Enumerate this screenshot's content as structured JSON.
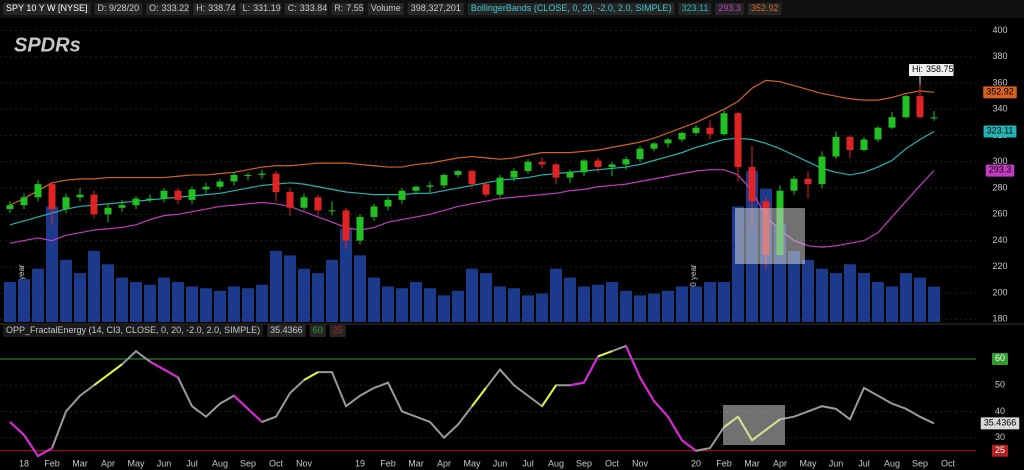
{
  "header": {
    "symbol": "SPY 10 Y W [NYSE]",
    "date": "D: 9/28/20",
    "open": "O:",
    "high": "H:",
    "low": "L:",
    "close": "C:",
    "range_label": "R:",
    "range": 7.55,
    "volume_label": "Volume",
    "volume": "398,327,201",
    "study": "BollingerBands (CLOSE, 0, 20, -2.0, 2.0, SIMPLE)",
    "logo": "SPDRs"
  },
  "chart_data": [
    {
      "type": "candlestick",
      "up_color": "#22c022",
      "down_color": "#e02424",
      "high_label": "Hi:",
      "annotations": [
        "2018 year",
        "2019 year",
        "2020 year"
      ],
      "categories": [
        null,
        "18",
        null,
        "Feb",
        null,
        "Mar",
        null,
        "Apr",
        null,
        "May",
        null,
        "Jun",
        null,
        "Jul",
        null,
        "Aug",
        null,
        "Sep",
        null,
        "Oct",
        null,
        "Nov",
        null,
        null,
        null,
        "19",
        null,
        "Feb",
        null,
        "Mar",
        null,
        "Apr",
        null,
        "May",
        null,
        "Jun",
        null,
        "Jul",
        null,
        "Aug",
        null,
        "Sep",
        null,
        "Oct",
        null,
        "Nov",
        null,
        null,
        null,
        "20",
        null,
        "Feb",
        null,
        "Mar",
        null,
        "Apr",
        null,
        "May",
        null,
        "Jun",
        null,
        "Jul",
        null,
        "Aug",
        null,
        "Sep",
        null,
        "Oct"
      ],
      "open": [
        264,
        267,
        273,
        283,
        264,
        273,
        275,
        260,
        265,
        267,
        272,
        272,
        278,
        271,
        279,
        281,
        285,
        290,
        290,
        291,
        277,
        265,
        273,
        263,
        263,
        240,
        258,
        266,
        271,
        278,
        281,
        282,
        290,
        293,
        283,
        275,
        288,
        293,
        300,
        298,
        288,
        292,
        301,
        296,
        298,
        302,
        310,
        314,
        317,
        322,
        326,
        321,
        337,
        296,
        270,
        229,
        278,
        287,
        283,
        304,
        319,
        309,
        317,
        326,
        334,
        350,
        333.22,
        null
      ],
      "high": [
        270,
        276,
        286,
        285,
        276,
        280,
        278,
        268,
        271,
        274,
        275,
        280,
        280,
        281,
        284,
        287,
        292,
        292,
        294,
        293,
        280,
        276,
        275,
        270,
        265,
        260,
        268,
        273,
        280,
        282,
        285,
        291,
        294,
        294,
        285,
        290,
        295,
        302,
        303,
        299,
        294,
        302,
        303,
        300,
        304,
        312,
        315,
        318,
        323,
        328,
        332,
        339,
        338,
        312,
        273,
        282,
        289,
        293,
        308,
        323,
        320,
        319,
        327,
        338,
        351,
        358.75,
        338.74,
        null
      ],
      "low": [
        261,
        264,
        270,
        252,
        261,
        270,
        257,
        254,
        262,
        264,
        269,
        269,
        268,
        268,
        276,
        279,
        282,
        286,
        287,
        270,
        259,
        263,
        259,
        259,
        234,
        237,
        255,
        263,
        268,
        275,
        276,
        280,
        288,
        280,
        273,
        273,
        285,
        291,
        295,
        283,
        284,
        289,
        292,
        289,
        294,
        300,
        308,
        311,
        315,
        320,
        317,
        320,
        285,
        250,
        218,
        228,
        275,
        272,
        280,
        302,
        303,
        308,
        315,
        325,
        333,
        333,
        331.19,
        null
      ],
      "close": [
        267,
        273,
        283,
        264,
        273,
        275,
        260,
        265,
        267,
        272,
        272,
        278,
        271,
        279,
        281,
        285,
        290,
        290,
        291,
        277,
        265,
        273,
        263,
        263,
        240,
        258,
        266,
        271,
        278,
        281,
        282,
        290,
        293,
        283,
        275,
        288,
        293,
        300,
        298,
        288,
        292,
        301,
        296,
        298,
        302,
        310,
        314,
        317,
        322,
        326,
        321,
        337,
        296,
        270,
        229,
        278,
        287,
        283,
        304,
        319,
        309,
        317,
        326,
        334,
        350,
        334,
        333.84,
        null
      ],
      "volume": {
        "color": "#1c3a8c",
        "ylim": [
          0,
          3400000000
        ],
        "values": [
          450000000,
          480000000,
          600000000,
          1300000000,
          700000000,
          550000000,
          800000000,
          650000000,
          500000000,
          450000000,
          420000000,
          500000000,
          450000000,
          400000000,
          380000000,
          350000000,
          400000000,
          380000000,
          420000000,
          800000000,
          750000000,
          600000000,
          550000000,
          700000000,
          1050000000,
          750000000,
          500000000,
          400000000,
          380000000,
          450000000,
          380000000,
          300000000,
          350000000,
          600000000,
          550000000,
          400000000,
          380000000,
          300000000,
          320000000,
          600000000,
          500000000,
          400000000,
          420000000,
          450000000,
          350000000,
          300000000,
          320000000,
          350000000,
          400000000,
          400000000,
          450000000,
          450000000,
          1300000000,
          1700000000,
          1500000000,
          1100000000,
          800000000,
          700000000,
          600000000,
          550000000,
          650000000,
          550000000,
          450000000,
          400000000,
          550000000,
          500000000,
          398327201,
          null
        ]
      },
      "series": [
        {
          "color": "#d4621e",
          "values": [
            267,
            272,
            278,
            284,
            286,
            287,
            287,
            288,
            288,
            288,
            288,
            288,
            289,
            290,
            290,
            291,
            292,
            294,
            296,
            297,
            297,
            298,
            299,
            299,
            299,
            298,
            297,
            296,
            296,
            298,
            299,
            301,
            303,
            304,
            303,
            302,
            303,
            305,
            307,
            307,
            307,
            308,
            309,
            311,
            313,
            315,
            318,
            322,
            326,
            330,
            335,
            340,
            346,
            356,
            362,
            361,
            358,
            355,
            352,
            350,
            348,
            347,
            347,
            349,
            352,
            354,
            352.92,
            null
          ]
        },
        {
          "color": "#22b4b4",
          "values": [
            252,
            255,
            258,
            261,
            264,
            266,
            267,
            268,
            269,
            270,
            271,
            272,
            273,
            274,
            275,
            276,
            278,
            280,
            282,
            283,
            284,
            283,
            281,
            279,
            277,
            276,
            275,
            275,
            275,
            276,
            276,
            278,
            280,
            282,
            284,
            286,
            287,
            288,
            290,
            291,
            292,
            293,
            294,
            295,
            296,
            298,
            301,
            304,
            307,
            311,
            314,
            317,
            318,
            317,
            314,
            310,
            305,
            300,
            295,
            292,
            290,
            292,
            296,
            301,
            310,
            317,
            323.11,
            null
          ]
        },
        {
          "color": "#c23cc2",
          "values": [
            238,
            240,
            242,
            240,
            244,
            246,
            248,
            249,
            250,
            252,
            256,
            259,
            260,
            262,
            264,
            266,
            267,
            268,
            269,
            268,
            266,
            262,
            258,
            254,
            250,
            248,
            250,
            254,
            256,
            258,
            260,
            263,
            266,
            268,
            270,
            272,
            273,
            274,
            275,
            276,
            278,
            279,
            281,
            282,
            283,
            285,
            287,
            289,
            291,
            293,
            294,
            294,
            290,
            278,
            258,
            248,
            240,
            236,
            235,
            236,
            238,
            240,
            246,
            258,
            270,
            282,
            293.3,
            null
          ]
        }
      ],
      "ylim": [
        178,
        408
      ],
      "yticks": [
        180,
        200,
        220,
        240,
        260,
        280,
        300,
        320,
        340,
        360,
        380,
        400
      ],
      "grid": true
    },
    {
      "type": "line",
      "title": "OPP_FractalEnergy (14, CI3, CLOSE, 0, 20, -2.0, 2.0, SIMPLE)",
      "color": "#9a9a9a",
      "values": [
        36,
        31,
        23,
        26,
        40,
        46,
        50,
        54,
        58,
        63,
        59,
        56,
        53,
        42,
        38,
        43,
        46,
        41,
        36,
        38,
        47,
        52,
        55,
        55,
        42,
        46,
        49,
        51,
        40,
        38,
        36,
        30,
        35,
        42,
        49,
        56,
        50,
        46,
        42,
        50,
        50,
        51,
        61,
        63,
        65,
        53,
        44,
        38,
        29,
        25,
        26,
        34,
        38,
        29,
        33,
        37,
        38,
        40,
        42,
        41,
        37,
        49,
        46,
        43,
        41,
        38,
        35.4366,
        null
      ],
      "point_colors": [
        "#9a9a9a",
        "#e020e0",
        "#e020e0",
        "#e020e0",
        "#9a9a9a",
        "#9a9a9a",
        "#9a9a9a",
        "#d4f53c",
        "#d4f53c",
        "#9a9a9a",
        "#9a9a9a",
        "#e020e0",
        "#e020e0",
        "#9a9a9a",
        "#9a9a9a",
        "#9a9a9a",
        "#9a9a9a",
        "#e020e0",
        "#e020e0",
        "#9a9a9a",
        "#9a9a9a",
        "#9a9a9a",
        "#d4f53c",
        "#9a9a9a",
        "#9a9a9a",
        "#9a9a9a",
        "#9a9a9a",
        "#9a9a9a",
        "#9a9a9a",
        "#9a9a9a",
        "#9a9a9a",
        "#9a9a9a",
        "#9a9a9a",
        "#9a9a9a",
        "#d4f53c",
        "#9a9a9a",
        "#9a9a9a",
        "#9a9a9a",
        "#9a9a9a",
        "#d4f53c",
        "#9a9a9a",
        "#e020e0",
        "#e020e0",
        "#d4f53c",
        "#9a9a9a",
        "#e020e0",
        "#e020e0",
        "#e020e0",
        "#e020e0",
        "#e020e0",
        "#9a9a9a",
        "#9a9a9a",
        "#d4f53c",
        "#d4f53c",
        "#d4f53c",
        "#d4f53c",
        "#9a9a9a",
        "#9a9a9a",
        "#9a9a9a",
        "#9a9a9a",
        "#9a9a9a",
        "#9a9a9a",
        "#9a9a9a",
        "#9a9a9a",
        "#9a9a9a",
        "#9a9a9a",
        "#9a9a9a",
        "#9a9a9a"
      ],
      "levels": [
        {
          "value": 60,
          "color": "#2f9e2f"
        },
        {
          "value": 25,
          "color": "#b02020"
        }
      ],
      "ylim": [
        23,
        73
      ],
      "yticks": [
        30,
        40,
        50
      ]
    }
  ]
}
